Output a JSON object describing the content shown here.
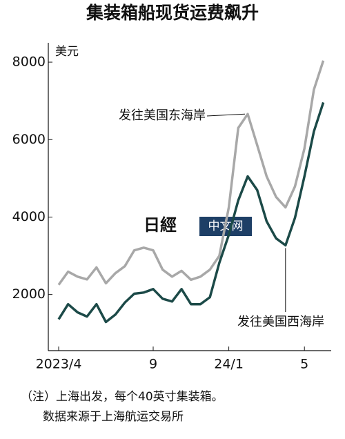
{
  "chart_data": {
    "type": "line",
    "title": "集装箱船现货运费飙升",
    "y_unit": "美元",
    "categories": [
      "2023/4",
      null,
      null,
      null,
      null,
      null,
      null,
      null,
      null,
      null,
      "9",
      null,
      null,
      null,
      null,
      null,
      null,
      null,
      "24/1",
      null,
      null,
      null,
      null,
      null,
      null,
      null,
      "5",
      null,
      null
    ],
    "series": [
      {
        "name": "发往美国东海岸",
        "color": "#a8a8a8",
        "values": [
          2250,
          2590,
          2460,
          2390,
          2700,
          2290,
          2550,
          2730,
          3140,
          3210,
          3140,
          2640,
          2460,
          2610,
          2380,
          2460,
          2640,
          3000,
          4250,
          6300,
          6660,
          5860,
          5050,
          4520,
          4250,
          4790,
          5770,
          7290,
          8040
        ]
      },
      {
        "name": "发往美国西海岸",
        "color": "#1c4a48",
        "values": [
          1360,
          1750,
          1540,
          1430,
          1750,
          1290,
          1480,
          1790,
          2020,
          2050,
          2140,
          1890,
          1820,
          2140,
          1750,
          1750,
          1930,
          2820,
          3540,
          4430,
          5050,
          4700,
          3890,
          3450,
          3270,
          3980,
          5050,
          6210,
          6960
        ]
      }
    ],
    "ylim": [
      550,
      8500
    ],
    "yticks": [
      2000,
      4000,
      6000,
      8000
    ],
    "watermark": [
      "日經",
      "中文网"
    ],
    "notes": [
      "（注）上海出发，每个40英寸集装箱。",
      "数据来源于上海航运交易所"
    ]
  }
}
